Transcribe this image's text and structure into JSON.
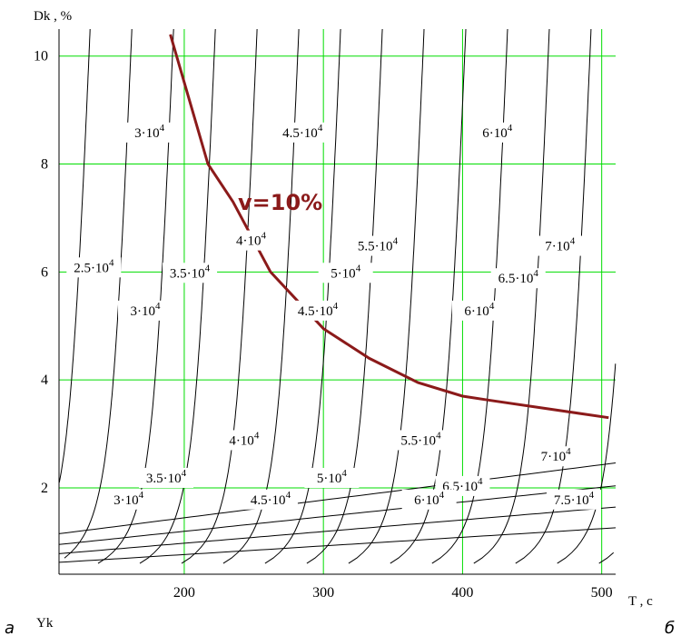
{
  "chart_data": {
    "type": "line",
    "ylabel": "Dk , %",
    "xlabel": "T , c",
    "bottom_label": "Yk",
    "corner_left": "a",
    "corner_right": "б",
    "xlim": [
      110,
      510
    ],
    "ylim": [
      0.4,
      10.5
    ],
    "x_ticks": [
      200,
      300,
      400,
      500
    ],
    "y_ticks": [
      2,
      4,
      6,
      8,
      10
    ],
    "grid": true,
    "colors": {
      "grid": "#00dd00",
      "contour": "#000000",
      "curve": "#8b1a1a"
    },
    "series": [
      {
        "name": "v=10%",
        "x": [
          190,
          217,
          235,
          262,
          300,
          333,
          368,
          400,
          420,
          505
        ],
        "y": [
          10.4,
          8.0,
          7.3,
          6.0,
          4.95,
          4.4,
          3.95,
          3.7,
          3.62,
          3.3
        ]
      }
    ],
    "contour_labels": [
      {
        "base": "3·10",
        "exp": "4",
        "x": 175,
        "y": 8.5
      },
      {
        "base": "4.5·10",
        "exp": "4",
        "x": 285,
        "y": 8.5
      },
      {
        "base": "6·10",
        "exp": "4",
        "x": 425,
        "y": 8.5
      },
      {
        "base": "5.5·10",
        "exp": "4",
        "x": 339,
        "y": 6.4
      },
      {
        "base": "7·10",
        "exp": "4",
        "x": 470,
        "y": 6.4
      },
      {
        "base": "4·10",
        "exp": "4",
        "x": 248,
        "y": 6.5
      },
      {
        "base": "2.5·10",
        "exp": "4",
        "x": 135,
        "y": 6.0
      },
      {
        "base": "3.5·10",
        "exp": "4",
        "x": 204,
        "y": 5.9
      },
      {
        "base": "5·10",
        "exp": "4",
        "x": 316,
        "y": 5.9
      },
      {
        "base": "6.5·10",
        "exp": "4",
        "x": 440,
        "y": 5.8
      },
      {
        "base": "3·10",
        "exp": "4",
        "x": 172,
        "y": 5.2
      },
      {
        "base": "4.5·10",
        "exp": "4",
        "x": 296,
        "y": 5.2
      },
      {
        "base": "6·10",
        "exp": "4",
        "x": 412,
        "y": 5.2
      },
      {
        "base": "4·10",
        "exp": "4",
        "x": 243,
        "y": 2.8
      },
      {
        "base": "5.5·10",
        "exp": "4",
        "x": 370,
        "y": 2.8
      },
      {
        "base": "7·10",
        "exp": "4",
        "x": 467,
        "y": 2.5
      },
      {
        "base": "3.5·10",
        "exp": "4",
        "x": 187,
        "y": 2.1
      },
      {
        "base": "5·10",
        "exp": "4",
        "x": 306,
        "y": 2.1
      },
      {
        "base": "6.5·10",
        "exp": "4",
        "x": 400,
        "y": 1.95
      },
      {
        "base": "3·10",
        "exp": "4",
        "x": 160,
        "y": 1.7
      },
      {
        "base": "4.5·10",
        "exp": "4",
        "x": 262,
        "y": 1.7
      },
      {
        "base": "6·10",
        "exp": "4",
        "x": 376,
        "y": 1.7
      },
      {
        "base": "7.5·10",
        "exp": "4",
        "x": 480,
        "y": 1.7
      }
    ]
  }
}
